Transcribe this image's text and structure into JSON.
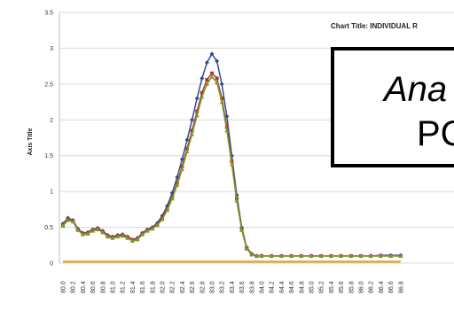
{
  "chart_data": {
    "type": "line",
    "title": "Chart Title: INDIVIDUAL R",
    "ylabel": "Axis Title",
    "xlabel": "",
    "ylim": [
      0,
      3.5
    ],
    "y_ticks": [
      "0",
      "0.5",
      "1",
      "1.5",
      "2",
      "2.5",
      "3",
      "3.5"
    ],
    "x_ticks": [
      "80.0",
      "80.2",
      "80.4",
      "80.6",
      "80.8",
      "81.0",
      "81.2",
      "81.4",
      "81.6",
      "81.8",
      "82.0",
      "82.2",
      "82.4",
      "82.6",
      "82.8",
      "83.0",
      "83.2",
      "83.4",
      "83.6",
      "83.8",
      "84.0",
      "84.2",
      "84.4",
      "84.6",
      "84.8",
      "85.0",
      "85.2",
      "85.4",
      "85.6",
      "85.8",
      "86.0",
      "86.2",
      "86.4",
      "86.6",
      "86.8"
    ],
    "grid": true,
    "x": [
      80.0,
      80.1,
      80.2,
      80.3,
      80.4,
      80.5,
      80.6,
      80.7,
      80.8,
      80.9,
      81.0,
      81.1,
      81.2,
      81.3,
      81.4,
      81.5,
      81.6,
      81.7,
      81.8,
      81.9,
      82.0,
      82.1,
      82.2,
      82.3,
      82.4,
      82.5,
      82.6,
      82.7,
      82.8,
      82.9,
      83.0,
      83.1,
      83.2,
      83.3,
      83.4,
      83.5,
      83.6,
      83.7,
      83.8,
      83.9,
      84.0,
      84.2,
      84.4,
      84.6,
      84.8,
      85.0,
      85.2,
      85.4,
      85.6,
      85.8,
      86.0,
      86.2,
      86.4,
      86.6,
      86.8
    ],
    "series": [
      {
        "color": "#2f4b8f",
        "marker": "diamond",
        "values": [
          0.55,
          0.63,
          0.6,
          0.48,
          0.42,
          0.43,
          0.47,
          0.49,
          0.45,
          0.39,
          0.37,
          0.39,
          0.4,
          0.37,
          0.33,
          0.35,
          0.42,
          0.47,
          0.5,
          0.56,
          0.66,
          0.8,
          0.98,
          1.2,
          1.45,
          1.72,
          2.0,
          2.3,
          2.58,
          2.8,
          2.92,
          2.82,
          2.5,
          2.05,
          1.5,
          0.95,
          0.5,
          0.22,
          0.13,
          0.1,
          0.1,
          0.1,
          0.1,
          0.1,
          0.1,
          0.1,
          0.1,
          0.1,
          0.1,
          0.1,
          0.1,
          0.1,
          0.11,
          0.11,
          0.11
        ]
      },
      {
        "color": "#b03a2e",
        "marker": "square",
        "values": [
          0.53,
          0.61,
          0.59,
          0.47,
          0.41,
          0.42,
          0.46,
          0.48,
          0.44,
          0.38,
          0.36,
          0.38,
          0.39,
          0.36,
          0.32,
          0.34,
          0.41,
          0.46,
          0.49,
          0.54,
          0.63,
          0.76,
          0.92,
          1.12,
          1.35,
          1.6,
          1.85,
          2.12,
          2.38,
          2.56,
          2.65,
          2.58,
          2.3,
          1.9,
          1.42,
          0.9,
          0.48,
          0.21,
          0.12,
          0.1,
          0.1,
          0.1,
          0.1,
          0.1,
          0.1,
          0.1,
          0.1,
          0.1,
          0.1,
          0.1,
          0.1,
          0.1,
          0.1,
          0.1,
          0.1
        ]
      },
      {
        "color": "#7a9a2c",
        "marker": "triangle",
        "values": [
          0.52,
          0.6,
          0.58,
          0.46,
          0.4,
          0.41,
          0.45,
          0.47,
          0.43,
          0.37,
          0.35,
          0.37,
          0.38,
          0.35,
          0.31,
          0.33,
          0.4,
          0.45,
          0.48,
          0.53,
          0.61,
          0.74,
          0.9,
          1.09,
          1.31,
          1.56,
          1.8,
          2.06,
          2.32,
          2.5,
          2.6,
          2.52,
          2.25,
          1.85,
          1.38,
          0.87,
          0.46,
          0.2,
          0.12,
          0.1,
          0.1,
          0.1,
          0.1,
          0.1,
          0.1,
          0.1,
          0.1,
          0.1,
          0.1,
          0.1,
          0.1,
          0.1,
          0.1,
          0.1,
          0.1
        ]
      },
      {
        "color": "#e8a33c",
        "marker": "none",
        "values": [
          0.02,
          0.02,
          0.02,
          0.02,
          0.02,
          0.02,
          0.02,
          0.02,
          0.02,
          0.02,
          0.02,
          0.02,
          0.02,
          0.02,
          0.02,
          0.02,
          0.02,
          0.02,
          0.02,
          0.02,
          0.02,
          0.02,
          0.02,
          0.02,
          0.02,
          0.02,
          0.02,
          0.02,
          0.02,
          0.02,
          0.02,
          0.02,
          0.02,
          0.02,
          0.02,
          0.02,
          0.02,
          0.02,
          0.02,
          0.02,
          0.02,
          0.02,
          0.02,
          0.02,
          0.02,
          0.02,
          0.02,
          0.02,
          0.02,
          0.02,
          0.02,
          0.02,
          0.02,
          0.02,
          0.02
        ]
      }
    ]
  },
  "overlay": {
    "line1": "Ana",
    "line2": "PC"
  }
}
